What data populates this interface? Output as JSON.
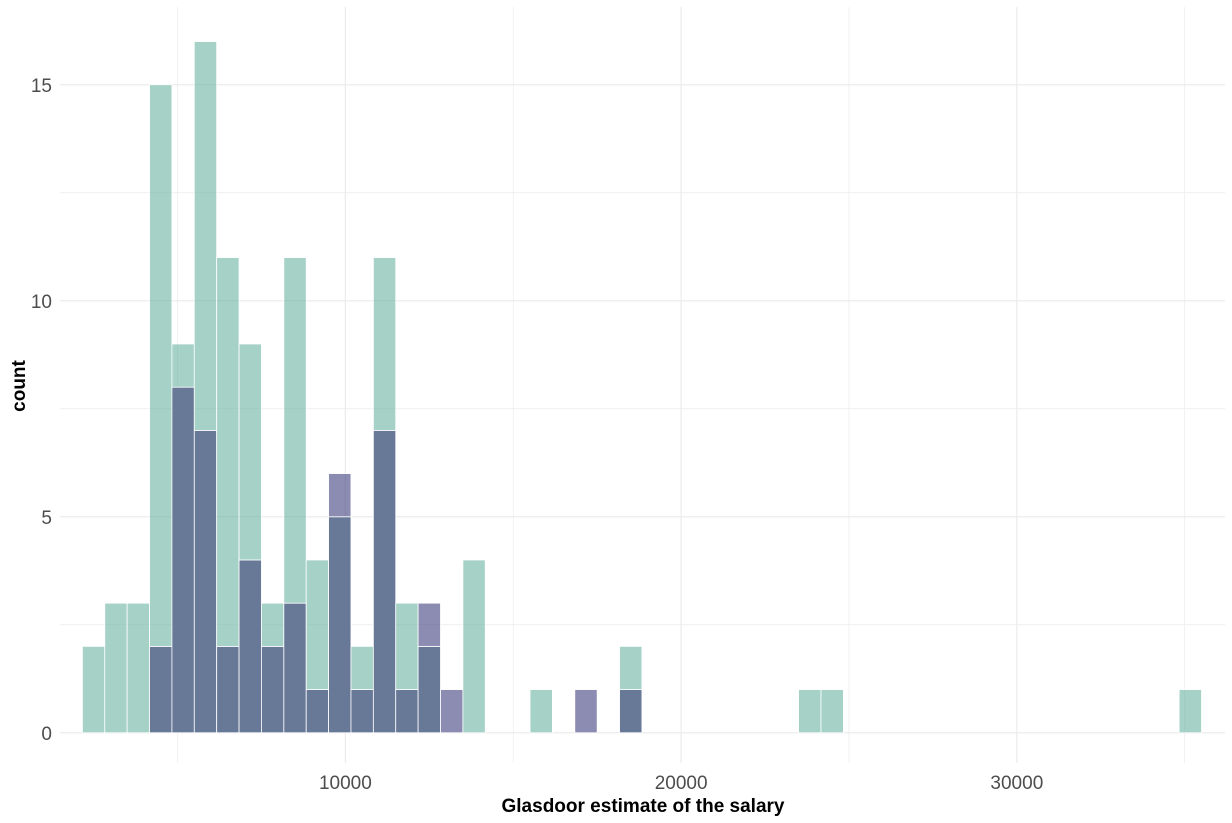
{
  "chart_data": {
    "type": "bar",
    "subtype": "overlaid histogram",
    "title": "",
    "xlabel": "Glasdoor estimate of the salary",
    "ylabel": "count",
    "xlim": [
      1500,
      36200
    ],
    "ylim": [
      -0.7,
      16.8
    ],
    "x_ticks": [
      10000,
      20000,
      30000
    ],
    "y_ticks": [
      0,
      5,
      10,
      15
    ],
    "x_minor_grid": [
      5000,
      15000,
      25000,
      35000
    ],
    "y_minor_grid": [
      2.5,
      7.5,
      12.5
    ],
    "bin_width": 666.67,
    "grid": true,
    "legend": "none",
    "colors": {
      "series_a": "#69b3a2",
      "series_b": "#404080",
      "overlap": "#687998",
      "grid": "#ebebeb",
      "bar_outline": "#ffffff"
    },
    "bin_centers": [
      2500,
      3167,
      3833,
      4500,
      5167,
      5833,
      6500,
      7167,
      7833,
      8500,
      9167,
      9833,
      10500,
      11167,
      11833,
      12500,
      13167,
      13833,
      15833,
      17167,
      18500,
      23833,
      24500,
      35167
    ],
    "series": [
      {
        "values": [
          2,
          3,
          3,
          15,
          9,
          16,
          11,
          9,
          3,
          11,
          4,
          5,
          2,
          11,
          3,
          2,
          0,
          4,
          1,
          0,
          2,
          1,
          1,
          1
        ]
      },
      {
        "values": [
          0,
          0,
          0,
          2,
          8,
          7,
          2,
          4,
          2,
          3,
          1,
          6,
          1,
          7,
          1,
          3,
          1,
          0,
          0,
          1,
          1,
          0,
          0,
          0
        ]
      }
    ]
  }
}
